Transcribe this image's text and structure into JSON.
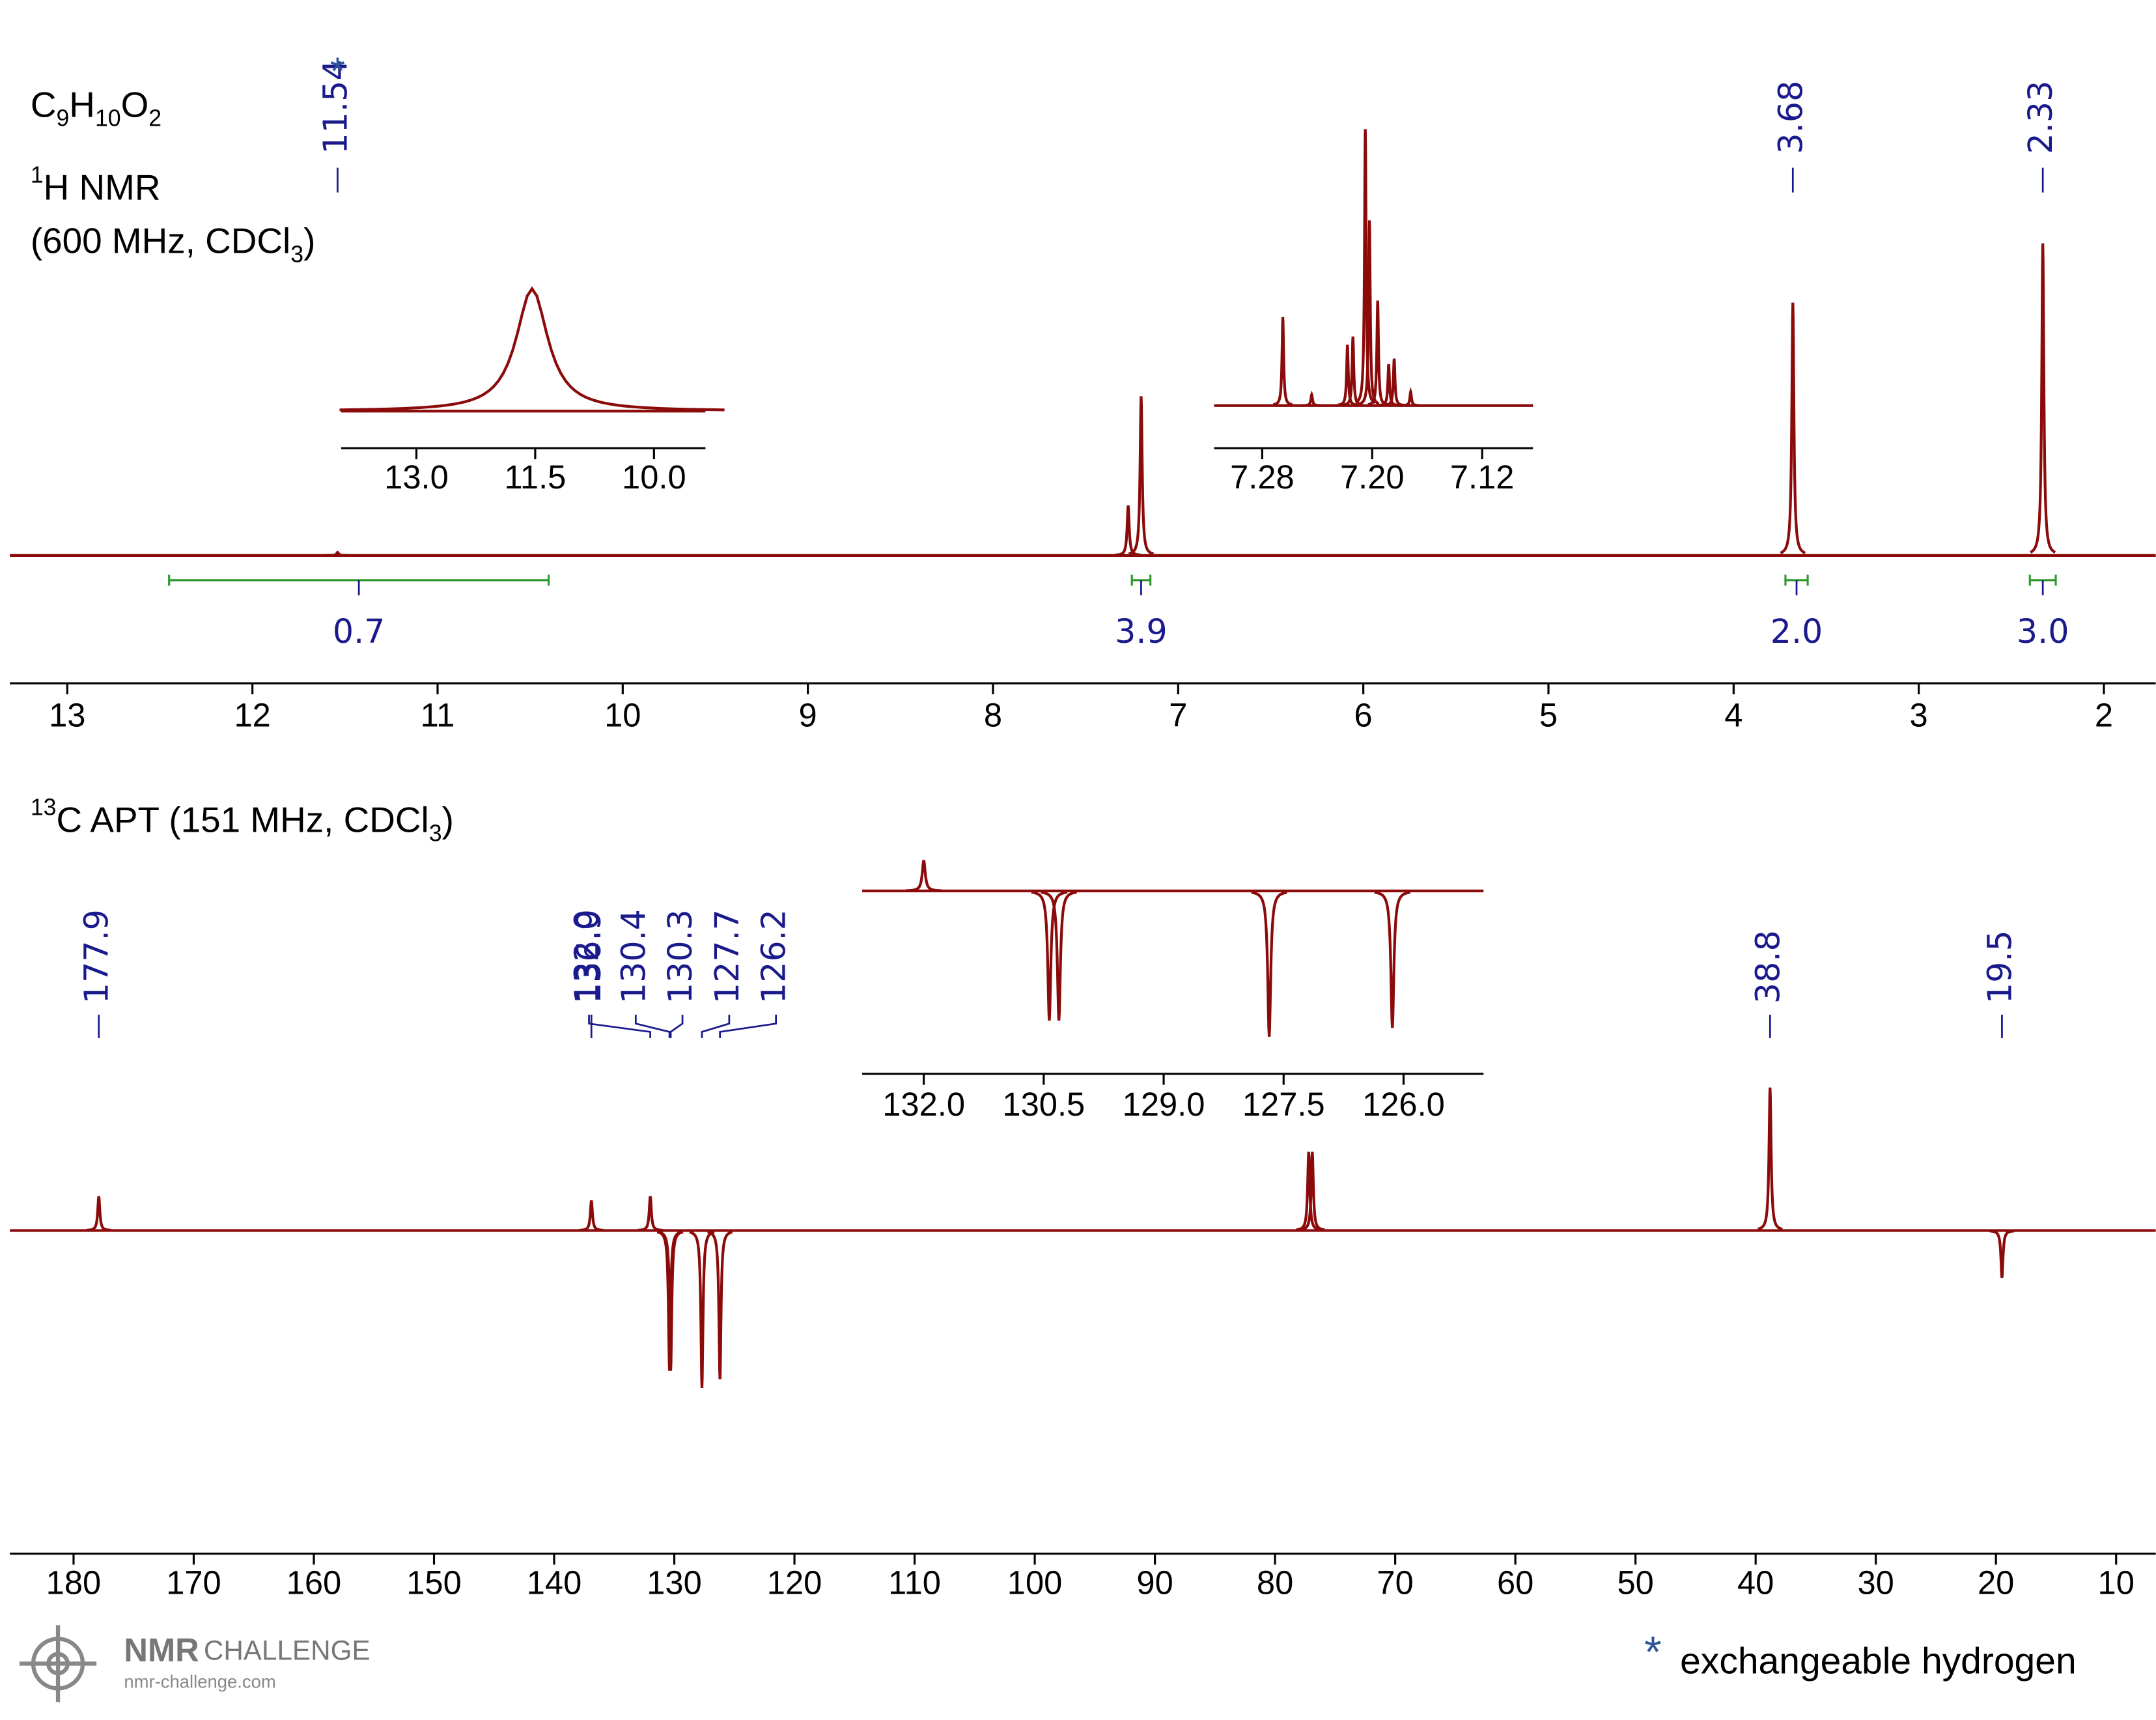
{
  "formula": [
    {
      "text": "C"
    },
    {
      "text": "9",
      "script": "sub"
    },
    {
      "text": "H"
    },
    {
      "text": "10",
      "script": "sub"
    },
    {
      "text": "O"
    },
    {
      "text": "2",
      "script": "sub"
    }
  ],
  "footer": {
    "brand": "NMR",
    "brand_sub": "CHALLENGE",
    "url": "nmr-challenge.com",
    "note": "exchangeable hydrogen"
  },
  "chart_data": [
    {
      "type": "spectrum",
      "color": "#8b0a0a",
      "label_color": "#1a1a8c",
      "title_lines": [
        [
          {
            "text": "1",
            "script": "super"
          },
          {
            "text": "H NMR"
          }
        ],
        [
          {
            "text": "(600 MHz, CDCl"
          },
          {
            "text": "3",
            "script": "sub"
          },
          {
            "text": ")"
          }
        ]
      ],
      "xlim": [
        13.31,
        1.72
      ],
      "xticks": [
        13,
        12,
        11,
        10,
        9,
        8,
        7,
        6,
        5,
        4,
        3,
        2
      ],
      "peaks": {
        "x": [
          11.54,
          7.27,
          7.2,
          3.68,
          2.33
        ],
        "heights": [
          1,
          16,
          51,
          81,
          100
        ]
      },
      "peak_labels": [
        11.54,
        3.68,
        2.33
      ],
      "exchangeable_marker": "*",
      "integral_color": "#2e9a2e",
      "integrals": [
        {
          "range": [
            12.45,
            10.4
          ],
          "value": 0.7
        },
        {
          "range": [
            7.25,
            7.15
          ],
          "value": 3.9
        },
        {
          "range": [
            3.72,
            3.6
          ],
          "value": {
            "value": 2,
            "label": "2.0"
          }
        },
        {
          "range": [
            2.4,
            2.26
          ],
          "value": {
            "value": 3,
            "label": "3.0"
          }
        }
      ],
      "insets": [
        {
          "xlim": [
            13.95,
            9.35
          ],
          "xticks": [
            {
              "value": 13,
              "label": "13.0"
            },
            11.5,
            {
              "value": 10,
              "label": "10.0"
            }
          ],
          "peaks": {
            "x": [
              11.54
            ],
            "heights": [
              100
            ]
          }
        },
        {
          "xlim": [
            7.315,
            7.083
          ],
          "xticks": [
            7.28,
            {
              "value": 7.2,
              "label": "7.20"
            },
            7.12
          ],
          "peaks": {
            "x": [
              7.265,
              7.244,
              7.218,
              7.214,
              7.205,
              7.202,
              7.196,
              7.188,
              7.184,
              7.172
            ],
            "heights": [
              32,
              4,
              22,
              25,
              100,
              67,
              38,
              15,
              17,
              5
            ]
          }
        }
      ]
    },
    {
      "type": "spectrum",
      "color": "#8b0a0a",
      "label_color": "#1a1a8c",
      "title_lines": [
        [
          {
            "text": "13",
            "script": "super"
          },
          {
            "text": "C APT (151 MHz, CDCl"
          },
          {
            "text": "3",
            "script": "sub"
          },
          {
            "text": ")"
          }
        ]
      ],
      "xlim": [
        185.3,
        6.7
      ],
      "xticks": [
        180,
        170,
        160,
        150,
        140,
        130,
        120,
        110,
        100,
        90,
        80,
        70,
        60,
        50,
        40,
        30,
        20,
        10
      ],
      "peaks": {
        "x": [
          177.9,
          136.9,
          132.0,
          130.4,
          130.3,
          127.7,
          126.2,
          77.2,
          76.9,
          38.8,
          19.5
        ],
        "heights": [
          24,
          21,
          24,
          -98,
          -98,
          -110,
          -104,
          55,
          55,
          100,
          -33
        ]
      },
      "peak_labels": [
        177.9,
        136.9,
        {
          "value": 132,
          "label": "132.0"
        },
        130.4,
        130.3,
        127.7,
        126.2,
        38.8,
        19.5
      ],
      "insets": [
        {
          "xlim": [
            132.77,
            125.0
          ],
          "xticks": [
            {
              "value": 132,
              "label": "132.0"
            },
            130.5,
            {
              "value": 129,
              "label": "129.0"
            },
            127.5,
            {
              "value": 126,
              "label": "126.0"
            }
          ],
          "peaks": {
            "x": [
              132.0,
              130.43,
              130.31,
              127.68,
              126.14
            ],
            "heights": [
              21,
              -89,
              -89,
              -100,
              -94
            ]
          }
        }
      ]
    }
  ]
}
